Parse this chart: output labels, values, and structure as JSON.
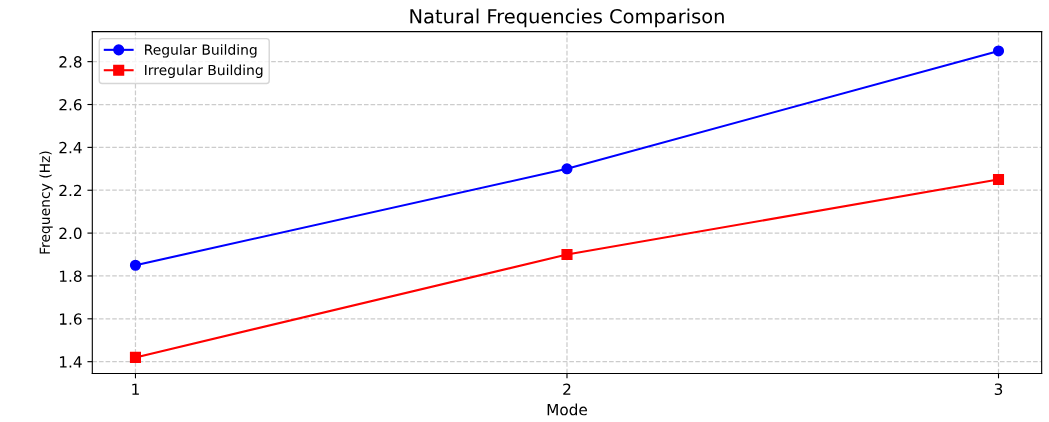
{
  "chart_data": {
    "type": "line",
    "title": "Natural Frequencies Comparison",
    "xlabel": "Mode",
    "ylabel": "Frequency (Hz)",
    "x": [
      1,
      2,
      3
    ],
    "series": [
      {
        "name": "Regular Building",
        "color": "#0000ff",
        "marker": "circle",
        "values": [
          1.85,
          2.3,
          2.85
        ]
      },
      {
        "name": "Irregular Building",
        "color": "#ff0000",
        "marker": "square",
        "values": [
          1.42,
          1.9,
          2.25
        ]
      }
    ],
    "xlim": [
      0.9,
      3.1
    ],
    "xticks": [
      1,
      2,
      3
    ],
    "ylim": [
      1.345,
      2.94
    ],
    "yticks": [
      1.4,
      1.6,
      1.8,
      {
        "value": 2,
        "label": "2.0"
      },
      2.2,
      2.4,
      2.6,
      2.8
    ],
    "grid": true,
    "legend": "top left",
    "line_style": "solid"
  }
}
